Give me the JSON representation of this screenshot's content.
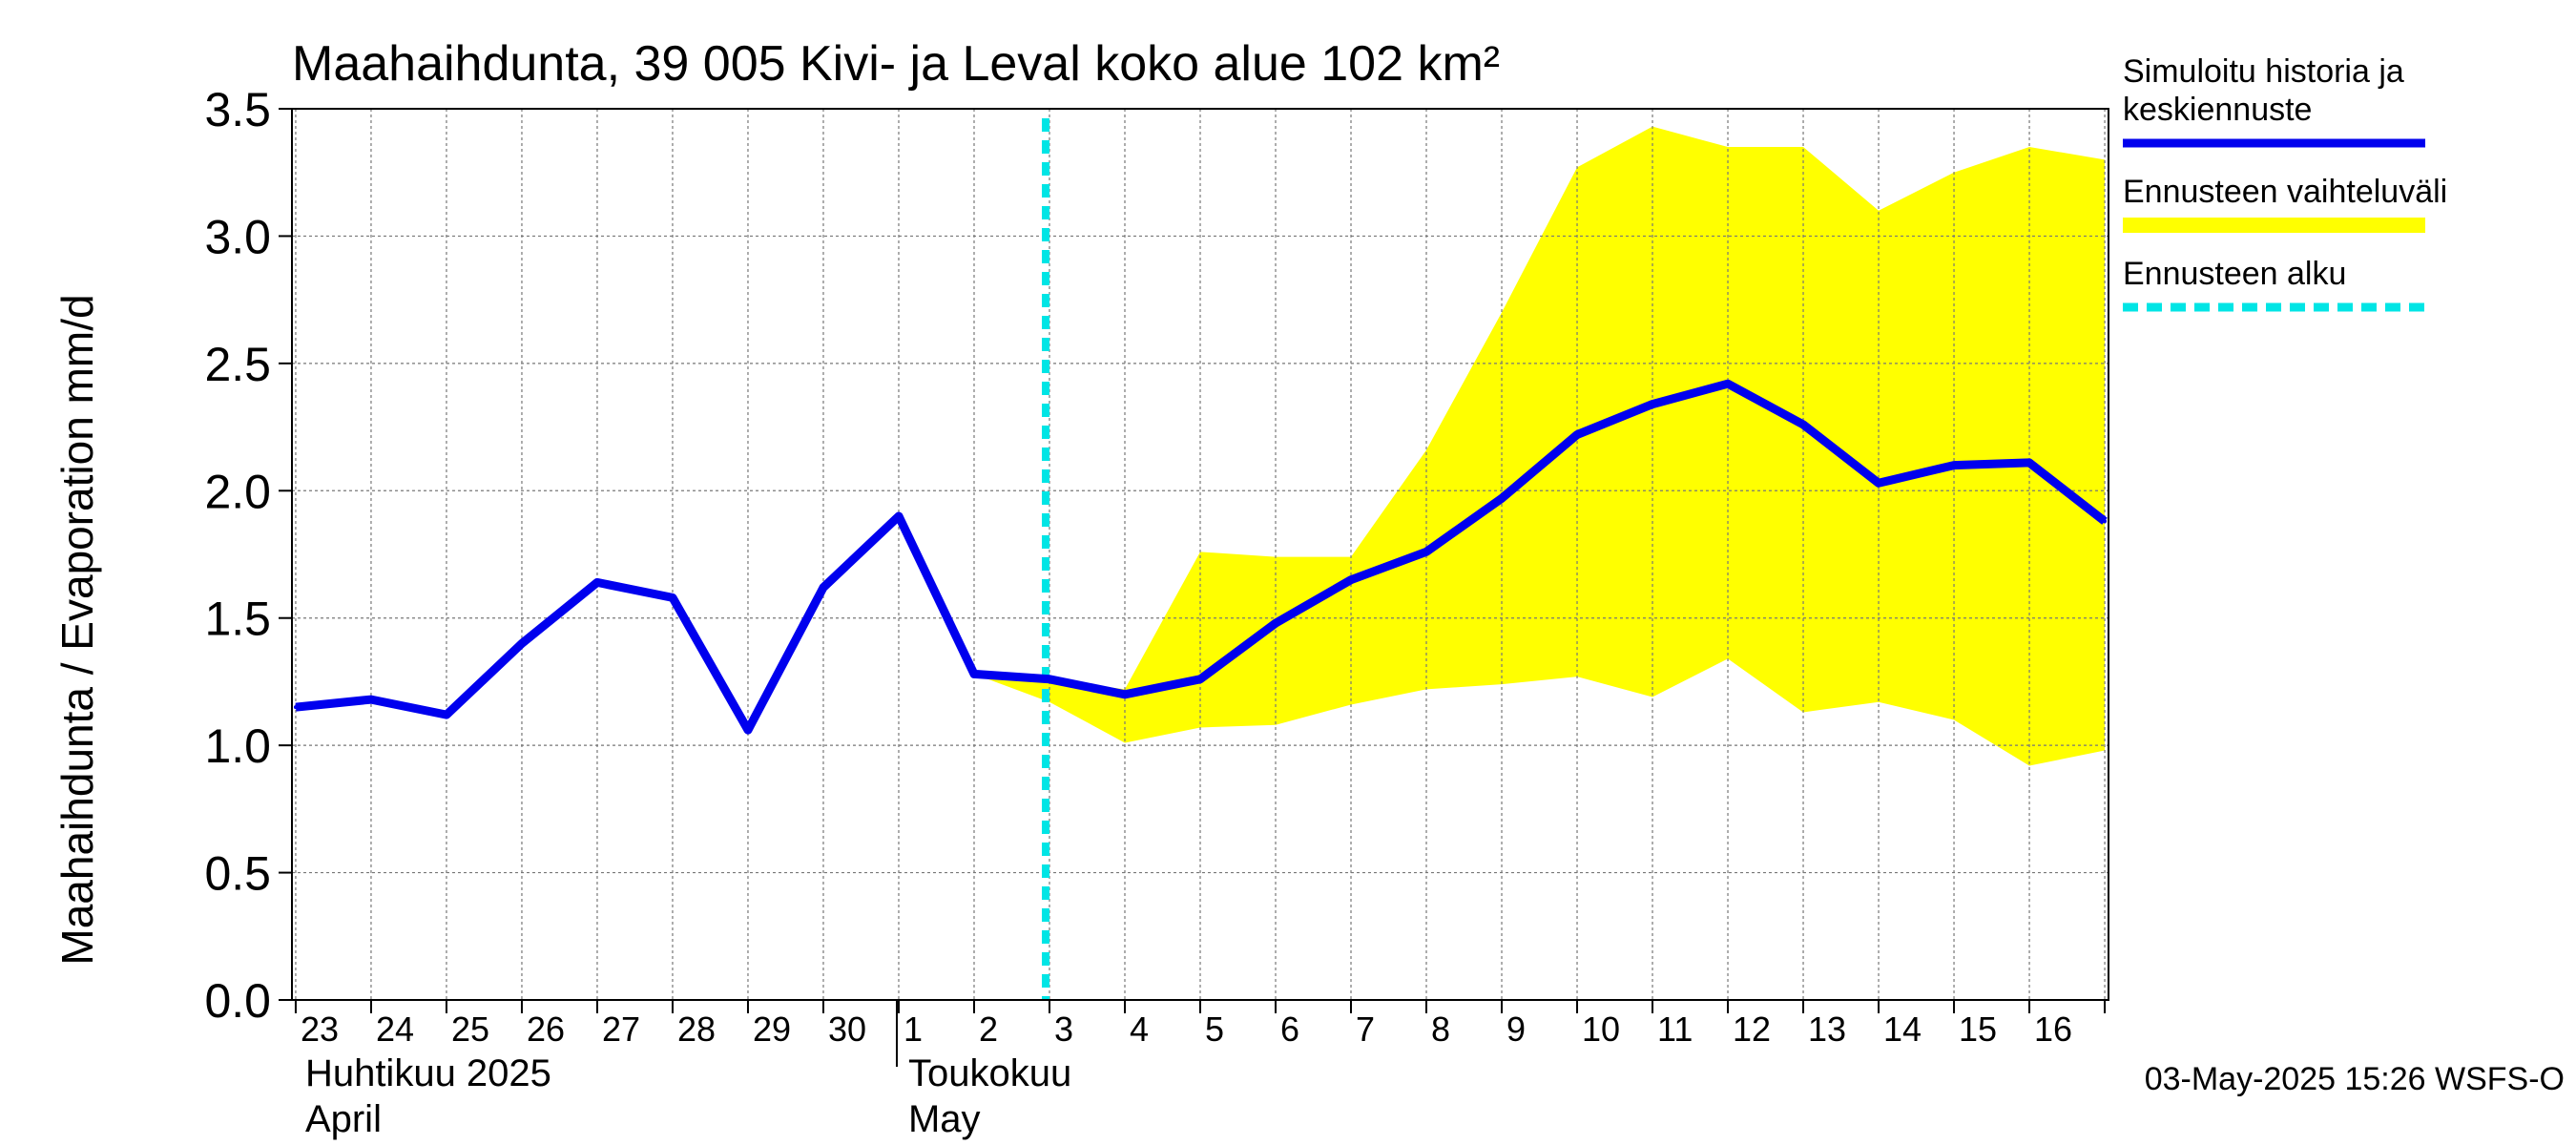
{
  "chart_data": {
    "type": "line",
    "title": "Maahaihdunta, 39 005 Kivi- ja Leval koko alue 102 km²",
    "ylabel": "Maahaihdunta / Evaporation   mm/d",
    "ylim": [
      0,
      3.5
    ],
    "yticks": [
      "0.0",
      "0.5",
      "1.0",
      "1.5",
      "2.0",
      "2.5",
      "3.0",
      "3.5"
    ],
    "x_range_days": [
      -0.05,
      24.05
    ],
    "day_labels": [
      "23",
      "24",
      "25",
      "26",
      "27",
      "28",
      "29",
      "30",
      "1",
      "2",
      "3",
      "4",
      "5",
      "6",
      "7",
      "8",
      "9",
      "10",
      "11",
      "12",
      "13",
      "14",
      "15",
      "16"
    ],
    "months": [
      {
        "fi": "Huhtikuu  2025",
        "en": "April",
        "start_day_index": 0
      },
      {
        "fi": "Toukokuu",
        "en": "May",
        "start_day_index": 8
      }
    ],
    "forecast_start_day_index": 10,
    "series": [
      {
        "name": "Simuloitu historia ja keskiennuste",
        "color": "#0000ee",
        "values": [
          1.15,
          1.18,
          1.12,
          1.4,
          1.64,
          1.58,
          1.06,
          1.62,
          1.9,
          1.28,
          1.26,
          1.2,
          1.26,
          1.48,
          1.65,
          1.76,
          1.97,
          2.22,
          2.34,
          2.42,
          2.26,
          2.03,
          2.1,
          2.11,
          1.88
        ]
      }
    ],
    "band": {
      "name": "Ennusteen vaihteluväli",
      "color": "#ffff00",
      "x_start_index": 9,
      "upper": [
        1.28,
        1.26,
        1.22,
        1.76,
        1.74,
        1.74,
        2.16,
        2.7,
        3.27,
        3.43,
        3.35,
        3.35,
        3.1,
        3.25,
        3.35,
        3.3
      ],
      "lower": [
        1.28,
        1.17,
        1.01,
        1.07,
        1.08,
        1.16,
        1.22,
        1.24,
        1.27,
        1.19,
        1.34,
        1.13,
        1.17,
        1.1,
        0.92,
        0.98
      ]
    },
    "legend": [
      {
        "label_lines": [
          "Simuloitu historia ja",
          "keskiennuste"
        ],
        "style": "solid",
        "color": "#0000ee"
      },
      {
        "label_lines": [
          "Ennusteen vaihteluväli"
        ],
        "style": "band",
        "color": "#ffff00"
      },
      {
        "label_lines": [
          "Ennusteen alku"
        ],
        "style": "dashed",
        "color": "#00e5e5"
      }
    ],
    "footer": "03-May-2025 15:26 WSFS-O"
  }
}
